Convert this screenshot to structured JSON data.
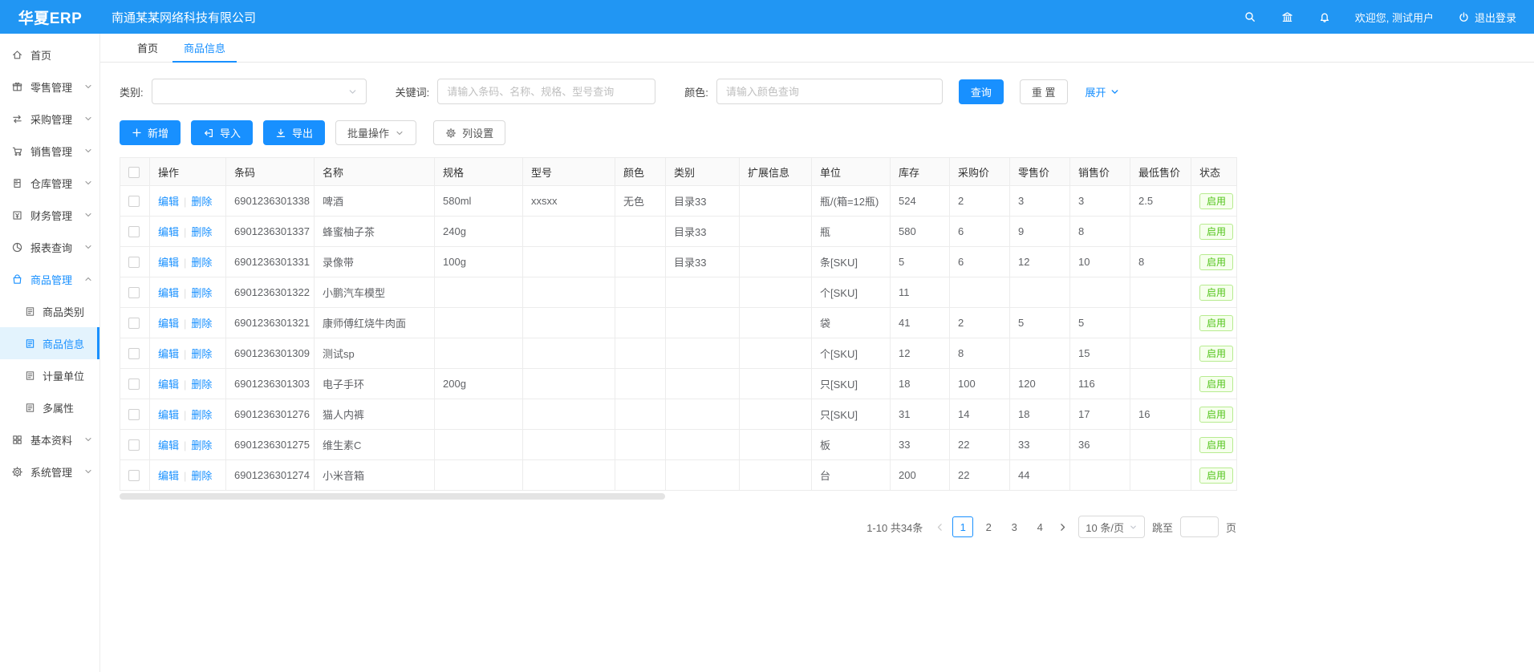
{
  "header": {
    "logo": "华夏ERP",
    "company": "南通某某网络科技有限公司",
    "welcome": "欢迎您, 测试用户",
    "logout": "退出登录",
    "icons": [
      "search-icon",
      "bank-icon",
      "bell-icon"
    ]
  },
  "sidebar": {
    "items": [
      {
        "id": "home",
        "label": "首页",
        "icon": "home-icon",
        "expandable": false
      },
      {
        "id": "retail",
        "label": "零售管理",
        "icon": "retail-icon",
        "expandable": true
      },
      {
        "id": "purchase",
        "label": "采购管理",
        "icon": "purchase-icon",
        "expandable": true
      },
      {
        "id": "sales",
        "label": "销售管理",
        "icon": "cart-icon",
        "expandable": true
      },
      {
        "id": "warehouse",
        "label": "仓库管理",
        "icon": "warehouse-icon",
        "expandable": true
      },
      {
        "id": "finance",
        "label": "财务管理",
        "icon": "finance-icon",
        "expandable": true
      },
      {
        "id": "report",
        "label": "报表查询",
        "icon": "report-icon",
        "expandable": true
      },
      {
        "id": "product",
        "label": "商品管理",
        "icon": "bag-icon",
        "expandable": true,
        "expanded": true,
        "active": true,
        "children": [
          {
            "id": "product-category",
            "label": "商品类别",
            "icon": "doc-icon",
            "active": false
          },
          {
            "id": "product-info",
            "label": "商品信息",
            "icon": "doc-icon",
            "active": true
          },
          {
            "id": "unit",
            "label": "计量单位",
            "icon": "doc-icon",
            "active": false
          },
          {
            "id": "attributes",
            "label": "多属性",
            "icon": "doc-icon",
            "active": false
          }
        ]
      },
      {
        "id": "basic",
        "label": "基本资料",
        "icon": "grid-icon",
        "expandable": true
      },
      {
        "id": "system",
        "label": "系统管理",
        "icon": "gear-icon",
        "expandable": true
      }
    ]
  },
  "tabs": [
    {
      "label": "首页",
      "active": false
    },
    {
      "label": "商品信息",
      "active": true
    }
  ],
  "filters": {
    "category_label": "类别:",
    "keyword_label": "关键词:",
    "keyword_placeholder": "请输入条码、名称、规格、型号查询",
    "color_label": "颜色:",
    "color_placeholder": "请输入颜色查询",
    "search_button": "查询",
    "reset_button": "重 置",
    "expand_link": "展开"
  },
  "toolbar": {
    "add": "新增",
    "import": "导入",
    "export": "导出",
    "batch": "批量操作",
    "columns": "列设置"
  },
  "table": {
    "headers": [
      "",
      "操作",
      "条码",
      "名称",
      "规格",
      "型号",
      "颜色",
      "类别",
      "扩展信息",
      "单位",
      "库存",
      "采购价",
      "零售价",
      "销售价",
      "最低售价",
      "状态"
    ],
    "action_edit": "编辑",
    "action_delete": "删除",
    "rows": [
      {
        "barcode": "6901236301338",
        "name": "啤酒",
        "spec": "580ml",
        "model": "xxsxx",
        "color": "无色",
        "category": "目录33",
        "ext": "",
        "unit": "瓶/(箱=12瓶)",
        "stock": "524",
        "purchase": "2",
        "retail": "3",
        "sale": "3",
        "lowest": "2.5",
        "status": "启用"
      },
      {
        "barcode": "6901236301337",
        "name": "蜂蜜柚子茶",
        "spec": "240g",
        "model": "",
        "color": "",
        "category": "目录33",
        "ext": "",
        "unit": "瓶",
        "stock": "580",
        "purchase": "6",
        "retail": "9",
        "sale": "8",
        "lowest": "",
        "status": "启用"
      },
      {
        "barcode": "6901236301331",
        "name": "录像带",
        "spec": "100g",
        "model": "",
        "color": "",
        "category": "目录33",
        "ext": "",
        "unit": "条[SKU]",
        "stock": "5",
        "purchase": "6",
        "retail": "12",
        "sale": "10",
        "lowest": "8",
        "status": "启用"
      },
      {
        "barcode": "6901236301322",
        "name": "小鹏汽车模型",
        "spec": "",
        "model": "",
        "color": "",
        "category": "",
        "ext": "",
        "unit": "个[SKU]",
        "stock": "11",
        "purchase": "",
        "retail": "",
        "sale": "",
        "lowest": "",
        "status": "启用"
      },
      {
        "barcode": "6901236301321",
        "name": "康师傅红烧牛肉面",
        "spec": "",
        "model": "",
        "color": "",
        "category": "",
        "ext": "",
        "unit": "袋",
        "stock": "41",
        "purchase": "2",
        "retail": "5",
        "sale": "5",
        "lowest": "",
        "status": "启用"
      },
      {
        "barcode": "6901236301309",
        "name": "测试sp",
        "spec": "",
        "model": "",
        "color": "",
        "category": "",
        "ext": "",
        "unit": "个[SKU]",
        "stock": "12",
        "purchase": "8",
        "retail": "",
        "sale": "15",
        "lowest": "",
        "status": "启用"
      },
      {
        "barcode": "6901236301303",
        "name": "电子手环",
        "spec": "200g",
        "model": "",
        "color": "",
        "category": "",
        "ext": "",
        "unit": "只[SKU]",
        "stock": "18",
        "purchase": "100",
        "retail": "120",
        "sale": "116",
        "lowest": "",
        "status": "启用"
      },
      {
        "barcode": "6901236301276",
        "name": "猫人内裤",
        "spec": "",
        "model": "",
        "color": "",
        "category": "",
        "ext": "",
        "unit": "只[SKU]",
        "stock": "31",
        "purchase": "14",
        "retail": "18",
        "sale": "17",
        "lowest": "16",
        "status": "启用"
      },
      {
        "barcode": "6901236301275",
        "name": "维生素C",
        "spec": "",
        "model": "",
        "color": "",
        "category": "",
        "ext": "",
        "unit": "板",
        "stock": "33",
        "purchase": "22",
        "retail": "33",
        "sale": "36",
        "lowest": "",
        "status": "启用"
      },
      {
        "barcode": "6901236301274",
        "name": "小米音箱",
        "spec": "",
        "model": "",
        "color": "",
        "category": "",
        "ext": "",
        "unit": "台",
        "stock": "200",
        "purchase": "22",
        "retail": "44",
        "sale": "",
        "lowest": "",
        "status": "启用"
      }
    ]
  },
  "pagination": {
    "summary": "1-10 共34条",
    "pages": [
      "1",
      "2",
      "3",
      "4"
    ],
    "current": "1",
    "page_size": "10 条/页",
    "jump_prefix": "跳至",
    "jump_suffix": "页"
  },
  "colors": {
    "header_bg": "#2196f3",
    "accent": "#1890ff",
    "status_green": "#52c41a",
    "status_green_bg": "#f6ffed"
  }
}
